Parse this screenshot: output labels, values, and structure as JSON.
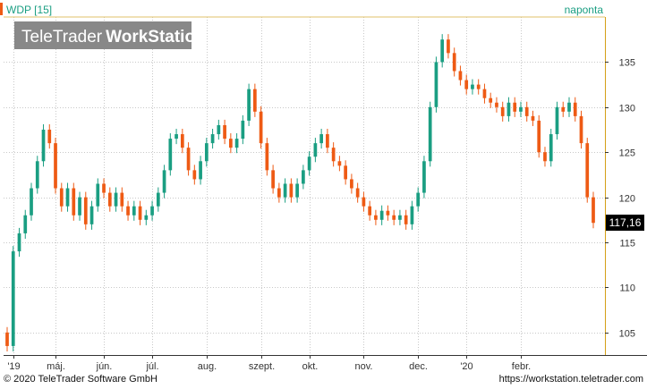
{
  "chart_data": {
    "type": "candlestick",
    "title": "WDP [15]",
    "interval_label": "naponta",
    "watermark": {
      "light": "TeleTrader",
      "bold": "WorkStation"
    },
    "last_price_label": "117,16",
    "ylim": [
      102.5,
      140
    ],
    "y_ticks": [
      105,
      110,
      115,
      120,
      125,
      130,
      135
    ],
    "x_ticks": [
      "'19",
      "máj.",
      "jún.",
      "júl.",
      "aug.",
      "szept.",
      "okt.",
      "nov.",
      "dec.",
      "'20",
      "febr."
    ],
    "colors": {
      "up": "#1a9e82",
      "down": "#ee5a14",
      "title": "#1a9e82",
      "price_box": "#000000",
      "axis": "#d4a017"
    },
    "series": [
      {
        "o": 105,
        "c": 103.5
      },
      {
        "o": 103.5,
        "c": 114
      },
      {
        "o": 114,
        "c": 116
      },
      {
        "o": 116,
        "c": 118
      },
      {
        "o": 118,
        "c": 121
      },
      {
        "o": 121,
        "c": 124
      },
      {
        "o": 124,
        "c": 127.5
      },
      {
        "o": 127.5,
        "c": 126
      },
      {
        "o": 126,
        "c": 121
      },
      {
        "o": 121,
        "c": 119
      },
      {
        "o": 119,
        "c": 121
      },
      {
        "o": 121,
        "c": 118
      },
      {
        "o": 118,
        "c": 120
      },
      {
        "o": 120,
        "c": 117
      },
      {
        "o": 117,
        "c": 119
      },
      {
        "o": 119,
        "c": 121.5
      },
      {
        "o": 121.5,
        "c": 120.5
      },
      {
        "o": 120.5,
        "c": 119
      },
      {
        "o": 119,
        "c": 120.5
      },
      {
        "o": 120.5,
        "c": 119
      },
      {
        "o": 119,
        "c": 118
      },
      {
        "o": 118,
        "c": 119
      },
      {
        "o": 119,
        "c": 117.5
      },
      {
        "o": 117.5,
        "c": 118
      },
      {
        "o": 118,
        "c": 119
      },
      {
        "o": 119,
        "c": 120.5
      },
      {
        "o": 120.5,
        "c": 123
      },
      {
        "o": 123,
        "c": 126.5
      },
      {
        "o": 126.5,
        "c": 127
      },
      {
        "o": 127,
        "c": 125.5
      },
      {
        "o": 125.5,
        "c": 123
      },
      {
        "o": 123,
        "c": 122
      },
      {
        "o": 122,
        "c": 124
      },
      {
        "o": 124,
        "c": 126
      },
      {
        "o": 126,
        "c": 127
      },
      {
        "o": 127,
        "c": 128
      },
      {
        "o": 128,
        "c": 126.5
      },
      {
        "o": 126.5,
        "c": 125.5
      },
      {
        "o": 125.5,
        "c": 126.5
      },
      {
        "o": 126.5,
        "c": 128.5
      },
      {
        "o": 128.5,
        "c": 132
      },
      {
        "o": 132,
        "c": 129.5
      },
      {
        "o": 129.5,
        "c": 126
      },
      {
        "o": 126,
        "c": 123
      },
      {
        "o": 123,
        "c": 121
      },
      {
        "o": 121,
        "c": 120
      },
      {
        "o": 120,
        "c": 121.5
      },
      {
        "o": 121.5,
        "c": 120
      },
      {
        "o": 120,
        "c": 121.5
      },
      {
        "o": 121.5,
        "c": 123
      },
      {
        "o": 123,
        "c": 124.5
      },
      {
        "o": 124.5,
        "c": 126
      },
      {
        "o": 126,
        "c": 127
      },
      {
        "o": 127,
        "c": 125.5
      },
      {
        "o": 125.5,
        "c": 124
      },
      {
        "o": 124,
        "c": 123.5
      },
      {
        "o": 123.5,
        "c": 122
      },
      {
        "o": 122,
        "c": 121
      },
      {
        "o": 121,
        "c": 120
      },
      {
        "o": 120,
        "c": 119
      },
      {
        "o": 119,
        "c": 118
      },
      {
        "o": 118,
        "c": 117.5
      },
      {
        "o": 117.5,
        "c": 118.5
      },
      {
        "o": 118.5,
        "c": 118
      },
      {
        "o": 118,
        "c": 117.5
      },
      {
        "o": 117.5,
        "c": 118
      },
      {
        "o": 118,
        "c": 117
      },
      {
        "o": 117,
        "c": 119
      },
      {
        "o": 119,
        "c": 120.5
      },
      {
        "o": 120.5,
        "c": 124
      },
      {
        "o": 124,
        "c": 130
      },
      {
        "o": 130,
        "c": 135
      },
      {
        "o": 135,
        "c": 137.5
      },
      {
        "o": 137.5,
        "c": 136
      },
      {
        "o": 136,
        "c": 134
      },
      {
        "o": 134,
        "c": 133
      },
      {
        "o": 133,
        "c": 132
      },
      {
        "o": 132,
        "c": 132.5
      },
      {
        "o": 132.5,
        "c": 132
      },
      {
        "o": 132,
        "c": 131
      },
      {
        "o": 131,
        "c": 130.5
      },
      {
        "o": 130.5,
        "c": 130
      },
      {
        "o": 130,
        "c": 129
      },
      {
        "o": 129,
        "c": 130.5
      },
      {
        "o": 130.5,
        "c": 129.5
      },
      {
        "o": 129.5,
        "c": 130
      },
      {
        "o": 130,
        "c": 129
      },
      {
        "o": 129,
        "c": 128.5
      },
      {
        "o": 128.5,
        "c": 125
      },
      {
        "o": 125,
        "c": 124
      },
      {
        "o": 124,
        "c": 127
      },
      {
        "o": 127,
        "c": 130
      },
      {
        "o": 130,
        "c": 129.5
      },
      {
        "o": 129.5,
        "c": 130.5
      },
      {
        "o": 130.5,
        "c": 129
      },
      {
        "o": 129,
        "c": 126
      },
      {
        "o": 126,
        "c": 120
      },
      {
        "o": 120,
        "c": 117.16
      }
    ]
  },
  "footer": {
    "copyright": "© 2020 TeleTrader Software GmbH",
    "url": "https://workstation.teletrader.com"
  }
}
